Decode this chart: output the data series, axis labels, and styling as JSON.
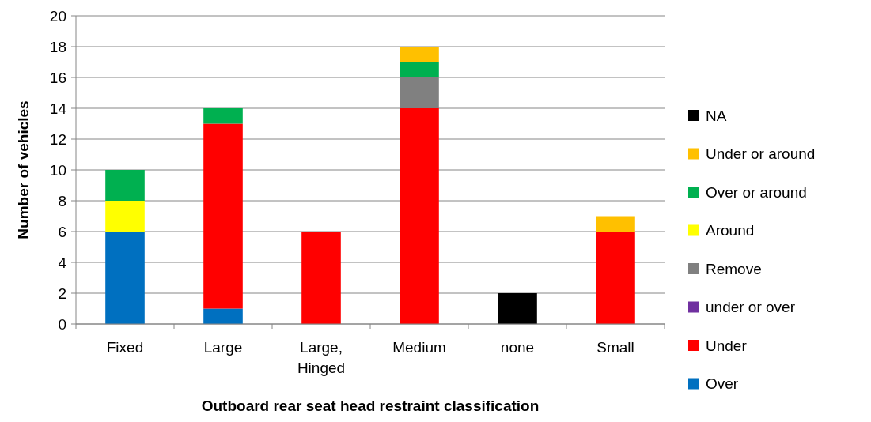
{
  "chart_data": {
    "type": "bar",
    "stacked": true,
    "xlabel": "Outboard rear seat head restraint classification",
    "ylabel": "Number of vehicles",
    "categories": [
      "Fixed",
      "Large",
      "Large, Hinged",
      "Medium",
      "none",
      "Small"
    ],
    "series": [
      {
        "name": "Over",
        "color": "#0070c0",
        "values": [
          6,
          1,
          0,
          0,
          0,
          0
        ]
      },
      {
        "name": "Under",
        "color": "#ff0000",
        "values": [
          0,
          12,
          6,
          14,
          0,
          6
        ]
      },
      {
        "name": "under or over",
        "color": "#7030a0",
        "values": [
          0,
          0,
          0,
          0,
          0,
          0
        ]
      },
      {
        "name": "Remove",
        "color": "#808080",
        "values": [
          0,
          0,
          0,
          2,
          0,
          0
        ]
      },
      {
        "name": "Around",
        "color": "#ffff00",
        "values": [
          2,
          0,
          0,
          0,
          0,
          0
        ]
      },
      {
        "name": "Over or around",
        "color": "#00b050",
        "values": [
          2,
          1,
          0,
          1,
          0,
          0
        ]
      },
      {
        "name": "Under or around",
        "color": "#ffc000",
        "values": [
          0,
          0,
          0,
          1,
          0,
          1
        ]
      },
      {
        "name": "NA",
        "color": "#000000",
        "values": [
          0,
          0,
          0,
          0,
          2,
          0
        ]
      }
    ],
    "ylim": [
      0,
      20
    ],
    "yticks": [
      0,
      2,
      4,
      6,
      8,
      10,
      12,
      14,
      16,
      18,
      20
    ],
    "grid": "y",
    "legend": "right"
  }
}
